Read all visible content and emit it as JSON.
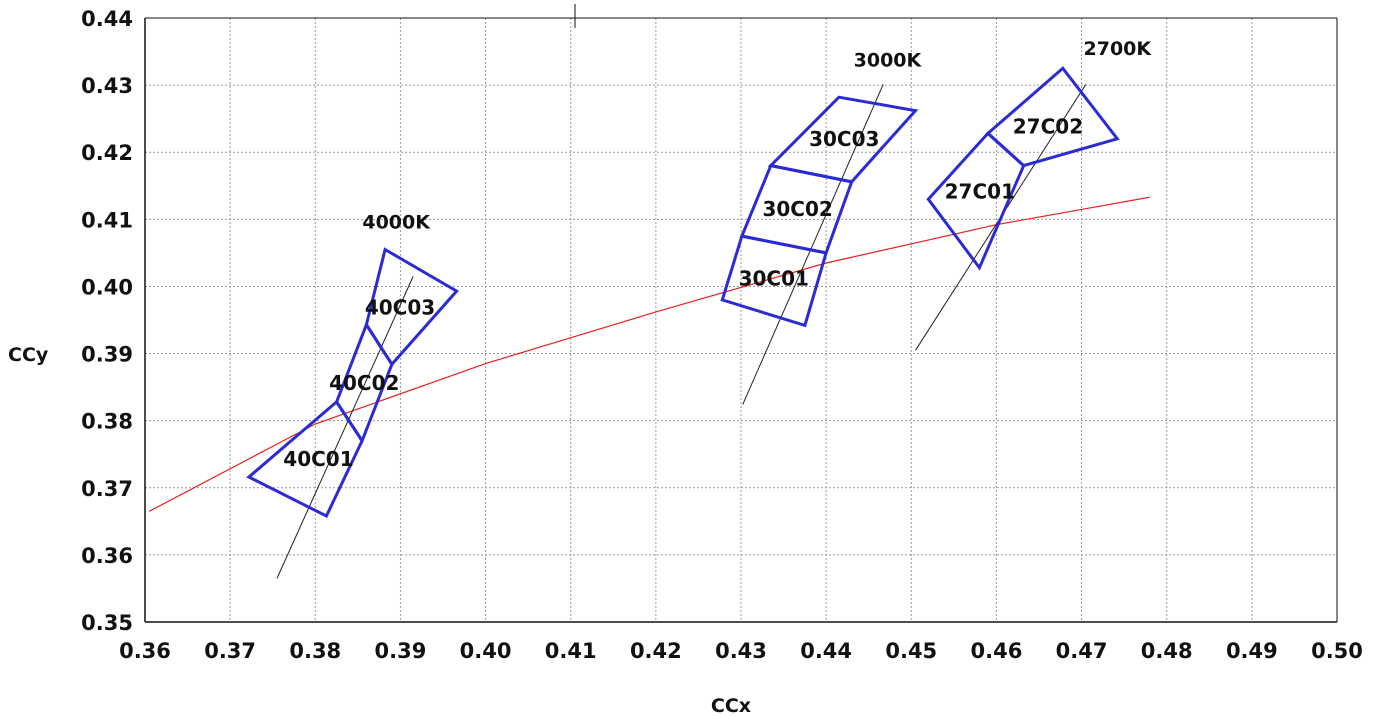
{
  "chart_data": {
    "type": "scatter",
    "title": "",
    "xlabel": "CCx",
    "ylabel": "CCy",
    "xlim": [
      0.36,
      0.5
    ],
    "ylim": [
      0.35,
      0.44
    ],
    "x_ticks": [
      "0.36",
      "0.37",
      "0.38",
      "0.39",
      "0.40",
      "0.41",
      "0.42",
      "0.43",
      "0.44",
      "0.45",
      "0.46",
      "0.47",
      "0.48",
      "0.49",
      "0.50"
    ],
    "y_ticks": [
      "0.35",
      "0.36",
      "0.37",
      "0.38",
      "0.39",
      "0.40",
      "0.41",
      "0.42",
      "0.43",
      "0.44"
    ],
    "grid": true,
    "blackbody_locus": {
      "color": "#e8211f",
      "points": [
        [
          0.3605,
          0.3665
        ],
        [
          0.38,
          0.3795
        ],
        [
          0.4,
          0.3885
        ],
        [
          0.42,
          0.3962
        ],
        [
          0.44,
          0.4035
        ],
        [
          0.46,
          0.4092
        ],
        [
          0.478,
          0.4133
        ]
      ]
    },
    "isotherms": [
      {
        "label": "4000K",
        "from": [
          0.3755,
          0.3565
        ],
        "to": [
          0.3915,
          0.4015
        ],
        "label_at": [
          0.3895,
          0.4086
        ]
      },
      {
        "label": "3000K",
        "from": [
          0.4302,
          0.3824
        ],
        "to": [
          0.4467,
          0.4301
        ],
        "label_at": [
          0.4472,
          0.4328
        ]
      },
      {
        "label": "2700K",
        "from": [
          0.4505,
          0.3905
        ],
        "to": [
          0.4705,
          0.4301
        ],
        "label_at": [
          0.4742,
          0.4345
        ]
      }
    ],
    "bins": [
      {
        "label": "40C01",
        "corners": [
          [
            0.3722,
            0.3716
          ],
          [
            0.3825,
            0.3828
          ],
          [
            0.3855,
            0.377
          ],
          [
            0.3813,
            0.3658
          ]
        ]
      },
      {
        "label": "40C02",
        "corners": [
          [
            0.3825,
            0.3828
          ],
          [
            0.386,
            0.3943
          ],
          [
            0.389,
            0.3884
          ],
          [
            0.3855,
            0.377
          ]
        ]
      },
      {
        "label": "40C03",
        "corners": [
          [
            0.386,
            0.3943
          ],
          [
            0.3882,
            0.4055
          ],
          [
            0.3966,
            0.3993
          ],
          [
            0.389,
            0.3884
          ]
        ]
      },
      {
        "label": "30C01",
        "corners": [
          [
            0.4278,
            0.398
          ],
          [
            0.4301,
            0.4075
          ],
          [
            0.44,
            0.405
          ],
          [
            0.4375,
            0.3942
          ]
        ]
      },
      {
        "label": "30C02",
        "corners": [
          [
            0.4301,
            0.4075
          ],
          [
            0.4335,
            0.418
          ],
          [
            0.443,
            0.4156
          ],
          [
            0.44,
            0.405
          ]
        ]
      },
      {
        "label": "30C03",
        "corners": [
          [
            0.4335,
            0.418
          ],
          [
            0.4415,
            0.4282
          ],
          [
            0.4505,
            0.4262
          ],
          [
            0.443,
            0.4156
          ]
        ]
      },
      {
        "label": "27C01",
        "corners": [
          [
            0.452,
            0.413
          ],
          [
            0.459,
            0.4228
          ],
          [
            0.4632,
            0.418
          ],
          [
            0.458,
            0.4028
          ]
        ]
      },
      {
        "label": "27C02",
        "corners": [
          [
            0.459,
            0.4228
          ],
          [
            0.4678,
            0.4325
          ],
          [
            0.4742,
            0.422
          ],
          [
            0.4632,
            0.418
          ]
        ]
      }
    ],
    "bin_color": "#2b2bd6"
  }
}
